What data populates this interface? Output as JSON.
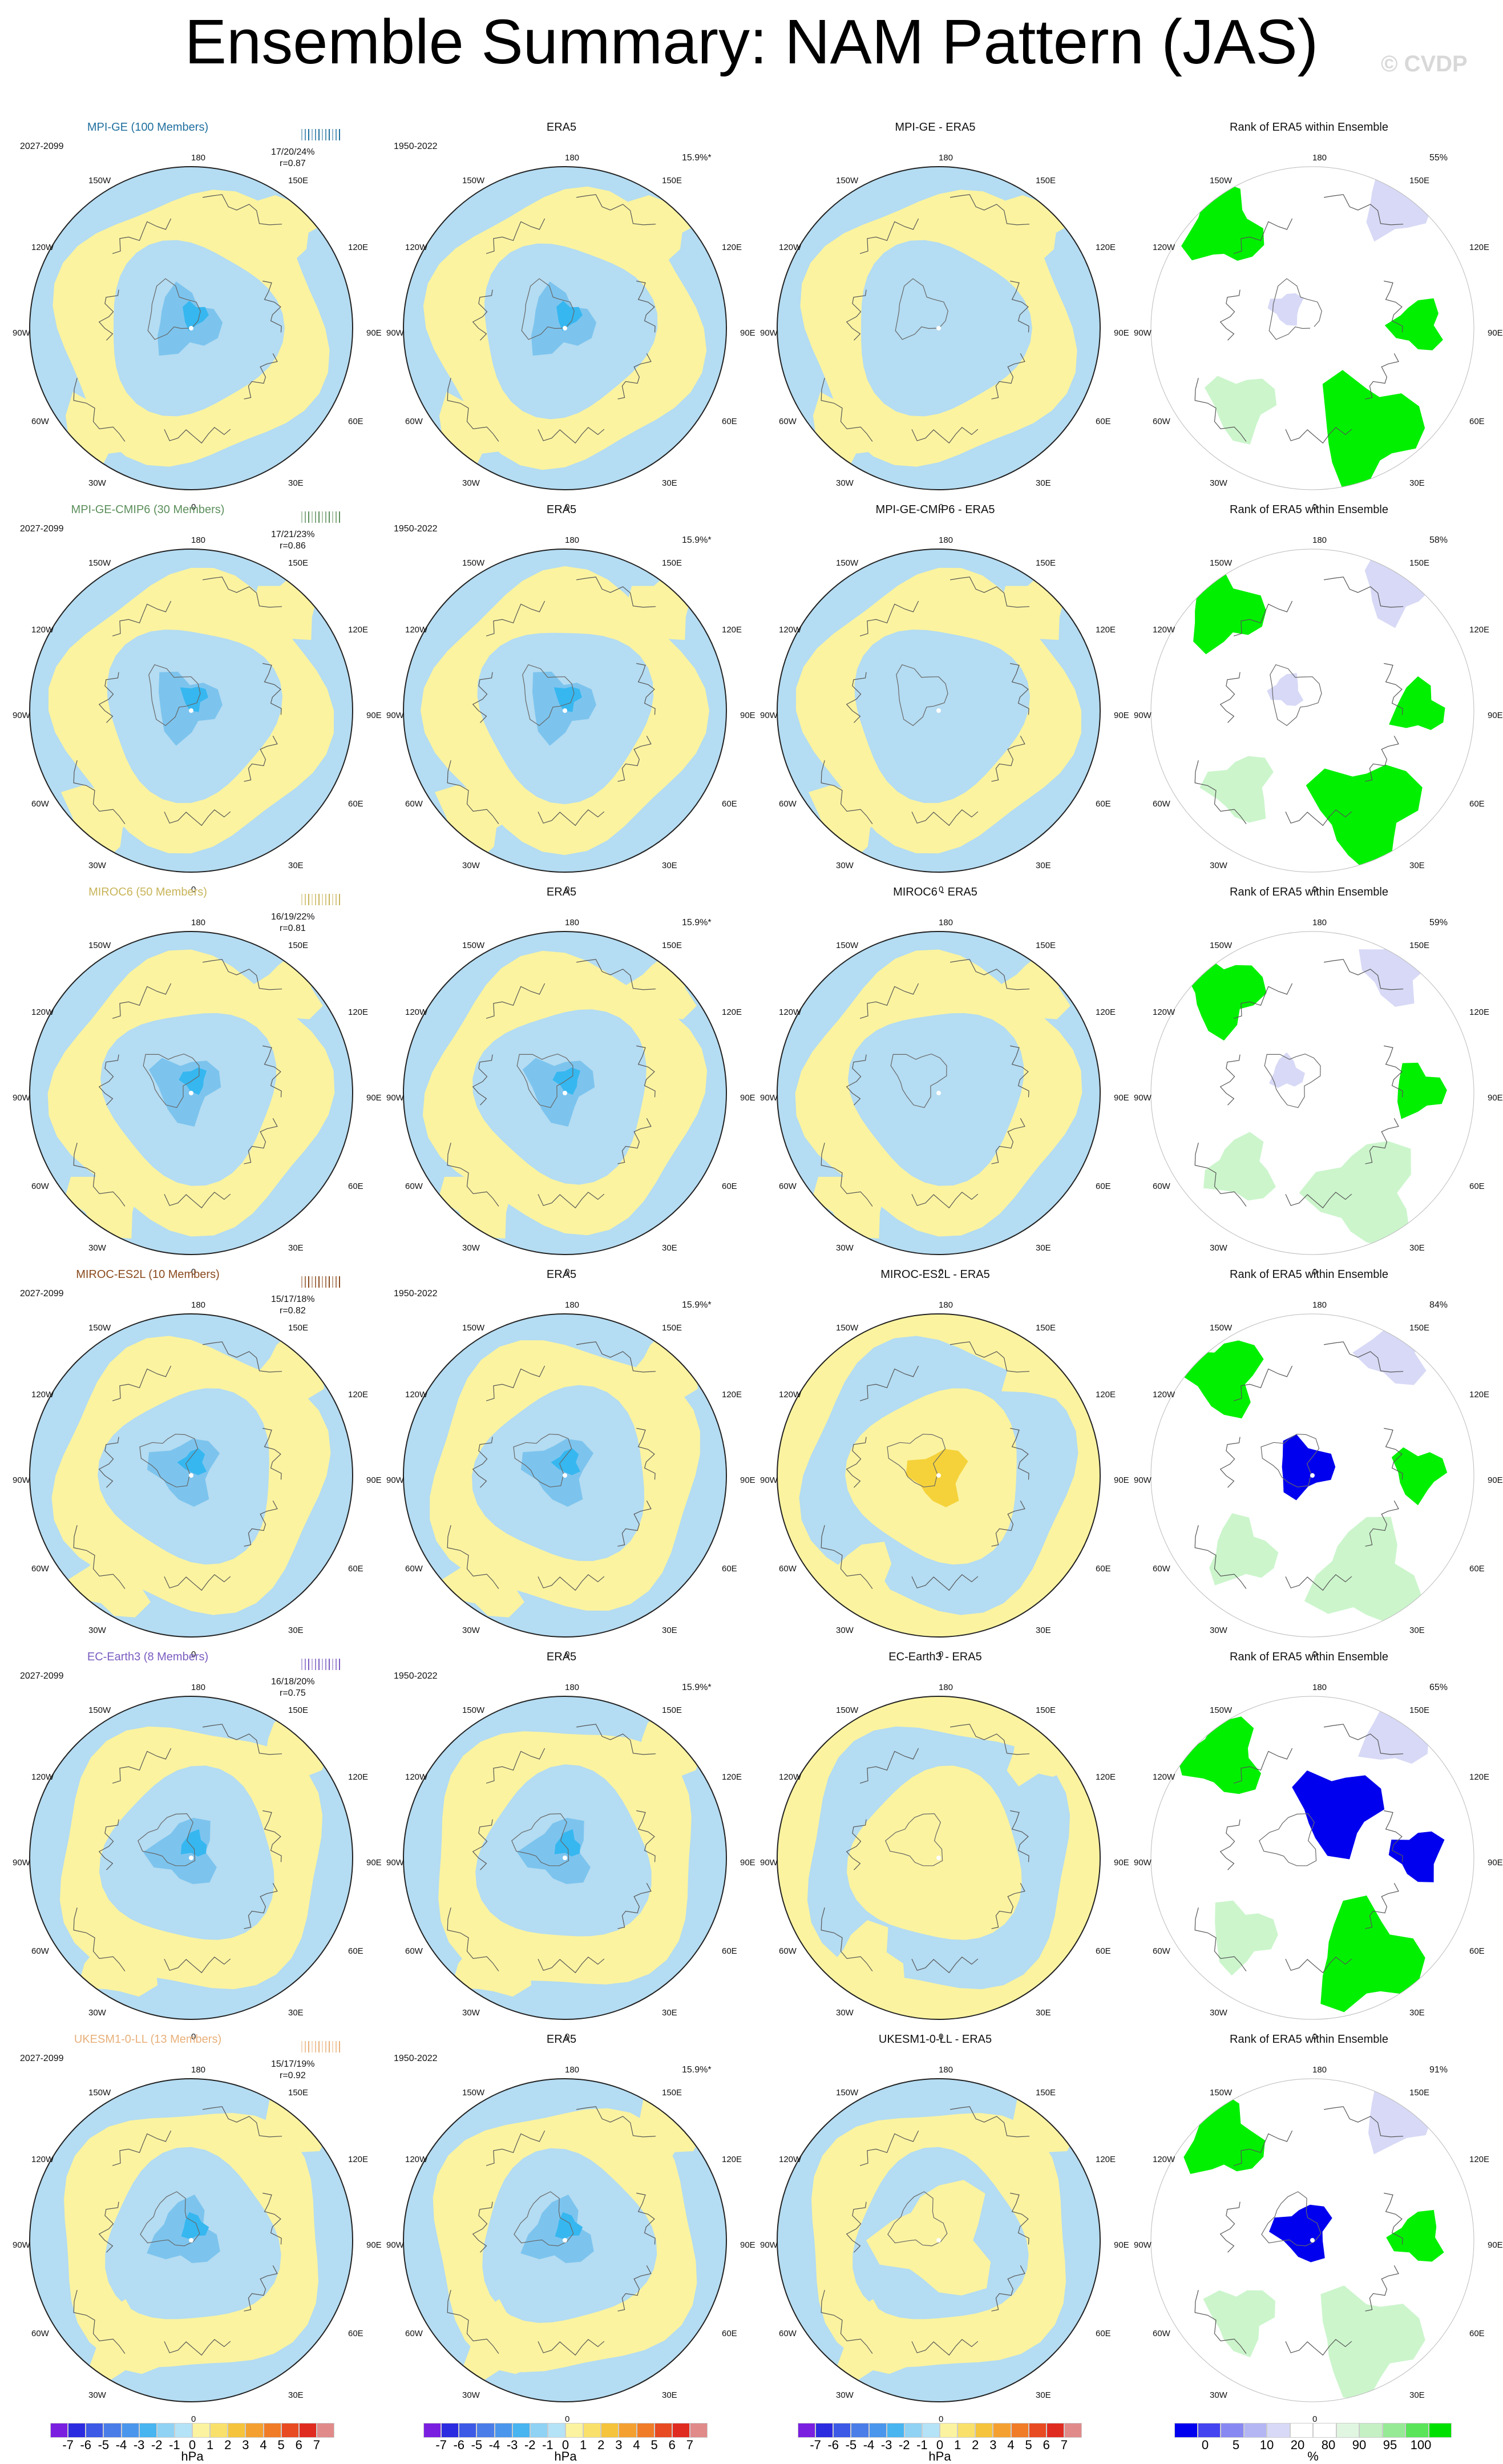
{
  "header": {
    "title": "Ensemble Summary: NAM Pattern (JAS)",
    "watermark": "© CVDP"
  },
  "colors": {
    "ocean_positive": "#fbf3a0",
    "ocean_negative": "#b4dcf2",
    "neg_mid": "#7cc4ee",
    "neg_strong": "#36b7f0",
    "pos_mid": "#f5d23a",
    "rank_green": "#00f000",
    "rank_blue": "#0000ee",
    "rank_light_blue": "#d7d9f6",
    "rank_light_green": "#ccf5cc"
  },
  "longitude_labels": [
    "180",
    "150E",
    "120E",
    "90E",
    "60E",
    "30E",
    "0",
    "30W",
    "60W",
    "90W",
    "120W",
    "150W"
  ],
  "rows": [
    {
      "model": "MPI-GE (100 Members)",
      "model_color": "#1f6f9e",
      "period": "2027-2099",
      "stat1": "17/20/24%",
      "stat2": "r=0.87",
      "era5_title": "ERA5",
      "era5_period": "1950-2022",
      "era5_pct": "15.9%*",
      "diff_title": "MPI-GE - ERA5",
      "rank_title": "Rank of ERA5 within Ensemble",
      "rank_pct": "55%",
      "variant": 0,
      "diff_variant": 0,
      "rank_variant": 0
    },
    {
      "model": "MPI-GE-CMIP6 (30 Members)",
      "model_color": "#5b8f5b",
      "period": "2027-2099",
      "stat1": "17/21/23%",
      "stat2": "r=0.86",
      "era5_title": "ERA5",
      "era5_period": "1950-2022",
      "era5_pct": "15.9%*",
      "diff_title": "MPI-GE-CMIP6 - ERA5",
      "rank_title": "Rank of ERA5 within Ensemble",
      "rank_pct": "58%",
      "variant": 1,
      "diff_variant": 1,
      "rank_variant": 1
    },
    {
      "model": "MIROC6 (50 Members)",
      "model_color": "#c8b45a",
      "period": "",
      "stat1": "16/19/22%",
      "stat2": "r=0.81",
      "era5_title": "ERA5",
      "era5_period": "",
      "era5_pct": "15.9%*",
      "diff_title": "MIROC6 - ERA5",
      "rank_title": "Rank of ERA5 within Ensemble",
      "rank_pct": "59%",
      "variant": 2,
      "diff_variant": 2,
      "rank_variant": 2
    },
    {
      "model": "MIROC-ES2L (10 Members)",
      "model_color": "#8a4a1e",
      "period": "2027-2099",
      "stat1": "15/17/18%",
      "stat2": "r=0.82",
      "era5_title": "ERA5",
      "era5_period": "1950-2022",
      "era5_pct": "15.9%*",
      "diff_title": "MIROC-ES2L - ERA5",
      "rank_title": "Rank of ERA5 within Ensemble",
      "rank_pct": "84%",
      "variant": 3,
      "diff_variant": 3,
      "rank_variant": 3
    },
    {
      "model": "EC-Earth3 (8 Members)",
      "model_color": "#7a5cc0",
      "period": "2027-2099",
      "stat1": "16/18/20%",
      "stat2": "r=0.75",
      "era5_title": "ERA5",
      "era5_period": "1950-2022",
      "era5_pct": "15.9%*",
      "diff_title": "EC-Earth3 - ERA5",
      "rank_title": "Rank of ERA5 within Ensemble",
      "rank_pct": "65%",
      "variant": 4,
      "diff_variant": 4,
      "rank_variant": 4
    },
    {
      "model": "UKESM1-0-LL (13 Members)",
      "model_color": "#e8b07a",
      "period": "2027-2099",
      "stat1": "15/17/19%",
      "stat2": "r=0.92",
      "era5_title": "ERA5",
      "era5_period": "1950-2022",
      "era5_pct": "15.9%*",
      "diff_title": "UKESM1-0-LL - ERA5",
      "rank_title": "Rank of ERA5 within Ensemble",
      "rank_pct": "91%",
      "variant": 5,
      "diff_variant": 5,
      "rank_variant": 5
    }
  ],
  "colorbar_hpa": {
    "colors": [
      "#7a1fe0",
      "#2b2be0",
      "#3c5ae6",
      "#4a7de8",
      "#4a96ec",
      "#48b4f0",
      "#8fd2f4",
      "#b4e2f6",
      "#fbf3a0",
      "#f9e06a",
      "#f5c43c",
      "#f4a030",
      "#f07c28",
      "#e84a22",
      "#e02c20",
      "#e08a8a"
    ],
    "ticks": [
      "-7",
      "-6",
      "-5",
      "-4",
      "-3",
      "-2",
      "-1",
      "0",
      "1",
      "2",
      "3",
      "4",
      "5",
      "6",
      "7"
    ],
    "unit": "hPa"
  },
  "colorbar_rank": {
    "colors": [
      "#0000ee",
      "#4444f0",
      "#8888f2",
      "#b4b6f4",
      "#d7d9f6",
      "#ffffff",
      "#ffffff",
      "#e0f6e0",
      "#c4f0c4",
      "#96ea96",
      "#5ae45a",
      "#00e000"
    ],
    "ticks": [
      "0",
      "5",
      "10",
      "20",
      "80",
      "90",
      "95",
      "100"
    ],
    "unit": "%"
  }
}
